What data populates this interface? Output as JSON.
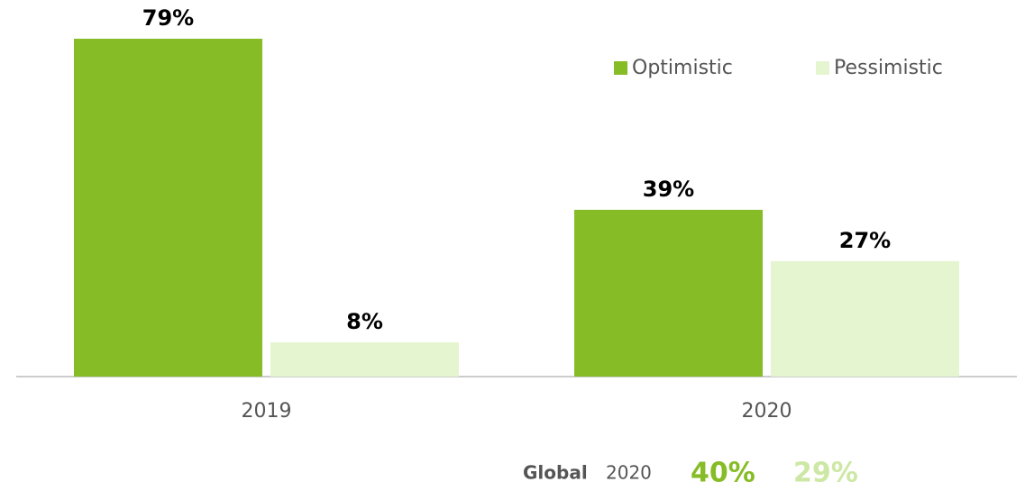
{
  "chart_data": {
    "type": "bar",
    "categories": [
      "2019",
      "2020"
    ],
    "series": [
      {
        "name": "Optimistic",
        "color": "#86bc25",
        "values": [
          79,
          39
        ],
        "value_labels": [
          "79%",
          "39%"
        ]
      },
      {
        "name": "Pessimistic",
        "color": "#e5f5d0",
        "values": [
          8,
          27
        ],
        "value_labels": [
          "8%",
          "27%"
        ]
      }
    ],
    "legend": "top-right",
    "footer": {
      "label": "Global",
      "year": "2020",
      "values": [
        40,
        29
      ],
      "value_labels": [
        "40%",
        "29%"
      ],
      "colors": [
        "#86bc25",
        "#cde8a4"
      ]
    }
  }
}
